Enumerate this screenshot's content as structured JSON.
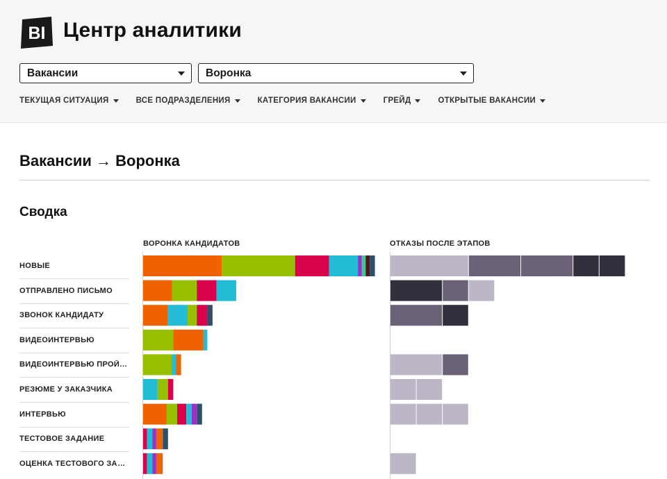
{
  "app": {
    "logo_text": "BI",
    "title": "Центр аналитики"
  },
  "selects": [
    {
      "value": "Вакансии"
    },
    {
      "value": "Воронка"
    }
  ],
  "filters": [
    {
      "label": "ТЕКУЩАЯ СИТУАЦИЯ"
    },
    {
      "label": "ВСЕ ПОДРАЗДЕЛЕНИЯ"
    },
    {
      "label": "КАТЕГОРИЯ ВАКАНСИИ"
    },
    {
      "label": "ГРЕЙД"
    },
    {
      "label": "ОТКРЫТЫЕ ВАКАНСИИ"
    }
  ],
  "page": {
    "title": "Вакансии → Воронка",
    "section": "Сводка"
  },
  "chart_data": {
    "type": "bar",
    "stacked": true,
    "orientation": "horizontal",
    "categories": [
      "НОВЫЕ",
      "ОТПРАВЛЕНО ПИСЬМО",
      "ЗВОНОК КАНДИДАТУ",
      "ВИДЕОИНТЕРВЬЮ",
      "ВИДЕОИНТЕРВЬЮ ПРОЙД...",
      "РЕЗЮМЕ У ЗАКАЗЧИКА",
      "ИНТЕРВЬЮ",
      "ТЕСТОВОЕ ЗАДАНИЕ",
      "ОЦЕНКА ТЕСТОВОГО ЗАДА..."
    ],
    "panels": [
      {
        "title": "ВОРОНКА КАНДИДАТОВ",
        "rows": [
          [
            {
              "v": 30,
              "c": "#ee6300"
            },
            {
              "v": 28,
              "c": "#96bf00"
            },
            {
              "v": 13,
              "c": "#d9004c"
            },
            {
              "v": 11,
              "c": "#22bcd6"
            },
            {
              "v": 1.5,
              "c": "#9b30c9"
            },
            {
              "v": 1.5,
              "c": "#2fcf8c"
            },
            {
              "v": 1.5,
              "c": "#5a1020"
            },
            {
              "v": 2,
              "c": "#2f4f66"
            }
          ],
          [
            {
              "v": 11,
              "c": "#ee6300"
            },
            {
              "v": 9.5,
              "c": "#96bf00"
            },
            {
              "v": 7.5,
              "c": "#d9004c"
            },
            {
              "v": 7.5,
              "c": "#22bcd6"
            }
          ],
          [
            {
              "v": 9.5,
              "c": "#ee6300"
            },
            {
              "v": 7.5,
              "c": "#22bcd6"
            },
            {
              "v": 3.5,
              "c": "#96bf00"
            },
            {
              "v": 4,
              "c": "#d9004c"
            },
            {
              "v": 2,
              "c": "#2f4f66"
            }
          ],
          [
            {
              "v": 11.5,
              "c": "#96bf00"
            },
            {
              "v": 11.5,
              "c": "#ee6300"
            },
            {
              "v": 1.5,
              "c": "#22bcd6"
            }
          ],
          [
            {
              "v": 11,
              "c": "#96bf00"
            },
            {
              "v": 1.5,
              "c": "#22bcd6"
            },
            {
              "v": 2,
              "c": "#ee6300"
            }
          ],
          [
            {
              "v": 5.5,
              "c": "#22bcd6"
            },
            {
              "v": 4,
              "c": "#96bf00"
            },
            {
              "v": 2,
              "c": "#d9004c"
            }
          ],
          [
            {
              "v": 9,
              "c": "#ee6300"
            },
            {
              "v": 4,
              "c": "#96bf00"
            },
            {
              "v": 3.5,
              "c": "#d9004c"
            },
            {
              "v": 2,
              "c": "#22bcd6"
            },
            {
              "v": 2,
              "c": "#9b30c9"
            },
            {
              "v": 2,
              "c": "#2f4f66"
            }
          ],
          [
            {
              "v": 1.5,
              "c": "#d9004c"
            },
            {
              "v": 2,
              "c": "#22bcd6"
            },
            {
              "v": 1.5,
              "c": "#9b30c9"
            },
            {
              "v": 2.5,
              "c": "#ee6300"
            },
            {
              "v": 2,
              "c": "#2f4f66"
            }
          ],
          [
            {
              "v": 1.5,
              "c": "#d9004c"
            },
            {
              "v": 2,
              "c": "#22bcd6"
            },
            {
              "v": 1.5,
              "c": "#9b30c9"
            },
            {
              "v": 2.5,
              "c": "#ee6300"
            }
          ]
        ]
      },
      {
        "title": "ОТКАЗЫ ПОСЛЕ ЭТАПОВ",
        "rows": [
          [
            {
              "v": 3,
              "c": "#bcb6c7"
            },
            {
              "v": 2,
              "c": "#6b6278"
            },
            {
              "v": 2,
              "c": "#6b6278"
            },
            {
              "v": 1,
              "c": "#33303d"
            },
            {
              "v": 1,
              "c": "#33303d"
            }
          ],
          [
            {
              "v": 2,
              "c": "#33303d"
            },
            {
              "v": 1,
              "c": "#6b6278"
            },
            {
              "v": 1,
              "c": "#bcb6c7"
            }
          ],
          [
            {
              "v": 2,
              "c": "#6b6278"
            },
            {
              "v": 1,
              "c": "#33303d"
            }
          ],
          [],
          [
            {
              "v": 2,
              "c": "#bcb6c7"
            },
            {
              "v": 1,
              "c": "#6b6278"
            }
          ],
          [
            {
              "v": 1,
              "c": "#bcb6c7"
            },
            {
              "v": 1,
              "c": "#bcb6c7"
            }
          ],
          [
            {
              "v": 1,
              "c": "#bcb6c7"
            },
            {
              "v": 1,
              "c": "#bcb6c7"
            },
            {
              "v": 1,
              "c": "#bcb6c7"
            }
          ],
          [],
          [
            {
              "v": 1,
              "c": "#bcb6c7"
            }
          ]
        ]
      }
    ]
  }
}
